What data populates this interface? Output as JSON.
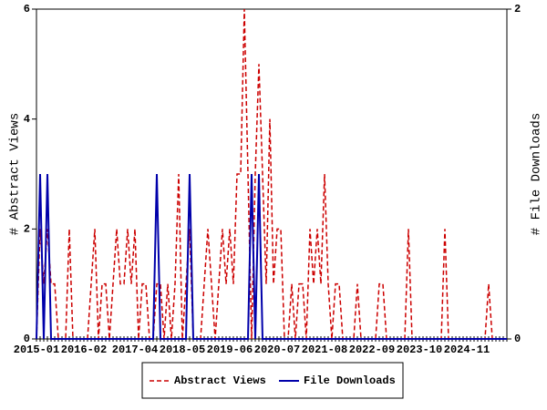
{
  "chart_data": {
    "type": "line",
    "x": [
      "2015-01",
      null,
      null,
      null,
      null,
      null,
      null,
      null,
      null,
      null,
      null,
      null,
      null,
      "2016-02",
      null,
      null,
      null,
      null,
      null,
      null,
      null,
      null,
      null,
      null,
      null,
      null,
      null,
      "2017-04",
      null,
      null,
      null,
      null,
      null,
      null,
      null,
      null,
      null,
      null,
      null,
      null,
      "2018-05",
      null,
      null,
      null,
      null,
      null,
      null,
      null,
      null,
      null,
      null,
      null,
      null,
      "2019-06",
      null,
      null,
      null,
      null,
      null,
      null,
      null,
      null,
      null,
      null,
      null,
      null,
      "2020-07",
      null,
      null,
      null,
      null,
      null,
      null,
      null,
      null,
      null,
      null,
      null,
      null,
      "2021-08",
      null,
      null,
      null,
      null,
      null,
      null,
      null,
      null,
      null,
      null,
      null,
      null,
      "2022-09",
      null,
      null,
      null,
      null,
      null,
      null,
      null,
      null,
      null,
      null,
      null,
      null,
      "2023-10",
      null,
      null,
      null,
      null,
      null,
      null,
      null,
      null,
      null,
      null,
      null,
      null,
      "2024-11",
      null,
      null,
      null,
      null,
      null,
      null,
      null,
      null,
      null,
      null,
      null
    ],
    "series": [
      {
        "name": "Abstract Views",
        "color": "#cc0000",
        "values": [
          0,
          2,
          1,
          2,
          1,
          1,
          0,
          0,
          0,
          2,
          0,
          0,
          0,
          0,
          0,
          1,
          2,
          0,
          1,
          1,
          0,
          1,
          2,
          1,
          1,
          2,
          1,
          2,
          0,
          1,
          1,
          0,
          0,
          1,
          1,
          0,
          1,
          0,
          1,
          3,
          0,
          1,
          2,
          0,
          0,
          0,
          1,
          2,
          1,
          0,
          1,
          2,
          1,
          2,
          1,
          3,
          3,
          6,
          3,
          0,
          3,
          5,
          3,
          1,
          4,
          1,
          2,
          2,
          0,
          0,
          1,
          0,
          1,
          1,
          0,
          2,
          1,
          2,
          1,
          3,
          1,
          0,
          1,
          1,
          0,
          0,
          0,
          0,
          1,
          0,
          0,
          0,
          0,
          0,
          1,
          1,
          0,
          0,
          0,
          0,
          0,
          0,
          2,
          0,
          0,
          0,
          0,
          0,
          0,
          0,
          0,
          0,
          2,
          0,
          0,
          0,
          0,
          0,
          0,
          0,
          0,
          0,
          0,
          0,
          1,
          0,
          0,
          0,
          0,
          0
        ]
      },
      {
        "name": "File Downloads",
        "color": "#0000aa",
        "axis": "y2",
        "values": [
          0,
          1,
          0,
          1,
          0,
          0,
          0,
          0,
          0,
          0,
          0,
          0,
          0,
          0,
          0,
          0,
          0,
          0,
          0,
          0,
          0,
          0,
          0,
          0,
          0,
          0,
          0,
          0,
          0,
          0,
          0,
          0,
          0,
          1,
          0,
          0,
          0,
          0,
          0,
          0,
          0,
          0,
          1,
          0,
          0,
          0,
          0,
          0,
          0,
          0,
          0,
          0,
          0,
          0,
          0,
          0,
          0,
          0,
          0,
          1,
          0,
          1,
          0,
          0,
          0,
          0,
          0,
          0,
          0,
          0,
          0,
          0,
          0,
          0,
          0,
          0,
          0,
          0,
          0,
          0,
          0,
          0,
          0,
          0,
          0,
          0,
          0,
          0,
          0,
          0,
          0,
          0,
          0,
          0,
          0,
          0,
          0,
          0,
          0,
          0,
          0,
          0,
          0,
          0,
          0,
          0,
          0,
          0,
          0,
          0,
          0,
          0,
          0,
          0,
          0,
          0,
          0,
          0,
          0,
          0,
          0,
          0,
          0,
          0,
          0,
          0,
          0,
          0,
          0,
          0
        ]
      }
    ],
    "ylabel": "# Abstract Views",
    "y2label": "# File Downloads",
    "ylim": [
      0,
      6
    ],
    "yticks": [
      0,
      2,
      4,
      6
    ],
    "y2lim": [
      0,
      2
    ],
    "y2ticks": [
      0,
      2
    ],
    "legend": "bottom"
  }
}
